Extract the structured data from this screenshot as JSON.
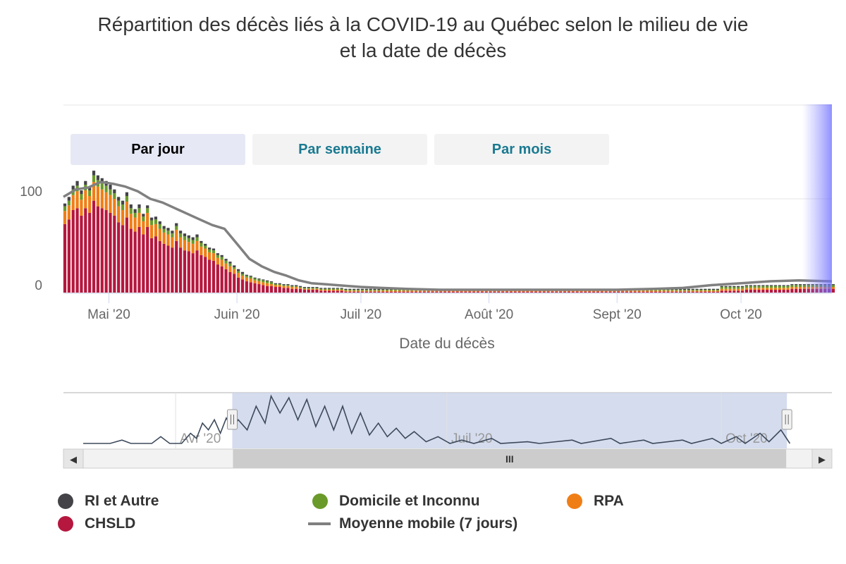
{
  "chart_data": {
    "type": "bar",
    "stacked": true,
    "title": "Répartition des décès liés à la COVID-19 au Québec selon le milieu de vie et la date de décès",
    "title_lines": [
      "Répartition des décès liés à la COVID-19 au Québec selon le milieu de vie",
      "et la date de décès"
    ],
    "xlabel": "Date du décès",
    "ylabel": "",
    "x_range": [
      "2020-04-20",
      "2020-10-23"
    ],
    "ylim": [
      0,
      200
    ],
    "y_ticks": [
      "0",
      "100"
    ],
    "x_ticks": [
      {
        "date": "2020-05-01",
        "label": "Mai '20"
      },
      {
        "date": "2020-06-01",
        "label": "Juin '20"
      },
      {
        "date": "2020-07-01",
        "label": "Juil '20"
      },
      {
        "date": "2020-08-01",
        "label": "Août '20"
      },
      {
        "date": "2020-09-01",
        "label": "Sept '20"
      },
      {
        "date": "2020-10-01",
        "label": "Oct '20"
      }
    ],
    "grid": true,
    "legend_position": "bottom",
    "start_date": "2020-04-20",
    "series": [
      {
        "name": "CHSLD",
        "color": "#b5173e",
        "values": [
          73,
          78,
          88,
          90,
          82,
          90,
          85,
          98,
          92,
          90,
          88,
          85,
          82,
          75,
          72,
          80,
          68,
          65,
          70,
          62,
          70,
          58,
          60,
          55,
          52,
          50,
          48,
          55,
          48,
          45,
          44,
          42,
          45,
          40,
          38,
          35,
          34,
          30,
          28,
          25,
          22,
          20,
          16,
          14,
          12,
          11,
          10,
          9,
          8,
          7,
          7,
          6,
          6,
          5,
          5,
          4,
          4,
          4,
          3,
          3,
          3,
          3,
          2,
          2,
          2,
          2,
          2,
          2,
          1,
          1,
          1,
          1,
          1,
          1,
          1,
          1,
          1,
          1,
          1,
          1,
          1,
          1,
          1,
          1,
          1,
          1,
          1,
          1,
          1,
          1,
          1,
          1,
          1,
          1,
          1,
          1,
          1,
          1,
          1,
          1,
          1,
          1,
          1,
          1,
          1,
          1,
          1,
          1,
          1,
          1,
          1,
          1,
          1,
          1,
          1,
          1,
          1,
          1,
          1,
          1,
          1,
          1,
          1,
          1,
          1,
          1,
          1,
          1,
          1,
          1,
          1,
          1,
          1,
          1,
          1,
          1,
          1,
          1,
          1,
          1,
          1,
          1,
          1,
          1,
          1,
          1,
          1,
          1,
          1,
          1,
          1,
          1,
          1,
          1,
          1,
          1,
          1,
          1,
          1,
          2,
          2,
          2,
          2,
          2,
          2,
          3,
          3,
          3,
          3,
          3,
          3,
          3,
          3,
          3,
          3,
          3,
          4,
          4,
          4,
          4,
          4,
          4,
          4,
          4,
          4,
          4,
          4
        ]
      },
      {
        "name": "RPA",
        "color": "#f07e16",
        "values": [
          14,
          15,
          16,
          18,
          17,
          19,
          18,
          20,
          21,
          20,
          19,
          19,
          18,
          17,
          16,
          17,
          16,
          15,
          15,
          14,
          15,
          14,
          13,
          13,
          12,
          12,
          11,
          12,
          11,
          11,
          10,
          10,
          10,
          9,
          9,
          8,
          8,
          7,
          7,
          6,
          6,
          5,
          5,
          4,
          4,
          4,
          3,
          3,
          3,
          3,
          2,
          2,
          2,
          2,
          2,
          2,
          2,
          1,
          1,
          1,
          1,
          1,
          1,
          1,
          1,
          1,
          1,
          1,
          1,
          1,
          1,
          1,
          1,
          1,
          1,
          1,
          1,
          1,
          1,
          1,
          1,
          1,
          1,
          1,
          1,
          1,
          1,
          1,
          1,
          1,
          1,
          1,
          1,
          1,
          1,
          1,
          1,
          1,
          1,
          1,
          1,
          1,
          1,
          1,
          1,
          1,
          1,
          1,
          1,
          1,
          1,
          1,
          1,
          1,
          1,
          1,
          1,
          1,
          1,
          1,
          1,
          1,
          1,
          1,
          1,
          1,
          1,
          1,
          1,
          1,
          1,
          1,
          1,
          1,
          1,
          1,
          1,
          1,
          1,
          1,
          1,
          1,
          1,
          1,
          1,
          1,
          1,
          1,
          1,
          1,
          1,
          1,
          1,
          1,
          1,
          1,
          1,
          1,
          1,
          2,
          2,
          2,
          2,
          2,
          2,
          2,
          2,
          2,
          2,
          2,
          2,
          2,
          2,
          2,
          2,
          2,
          2,
          2,
          2,
          2,
          2,
          2,
          2,
          2,
          2,
          2,
          2
        ]
      },
      {
        "name": "Domicile et Inconnu",
        "color": "#6a9a29",
        "values": [
          5,
          5,
          6,
          6,
          6,
          6,
          6,
          7,
          7,
          7,
          7,
          6,
          6,
          6,
          6,
          6,
          6,
          5,
          5,
          5,
          5,
          5,
          5,
          5,
          4,
          4,
          4,
          4,
          4,
          4,
          4,
          4,
          4,
          4,
          3,
          3,
          3,
          3,
          3,
          3,
          3,
          2,
          2,
          2,
          2,
          2,
          2,
          2,
          2,
          2,
          2,
          1,
          1,
          1,
          1,
          1,
          1,
          1,
          1,
          1,
          1,
          1,
          1,
          1,
          1,
          1,
          1,
          1,
          1,
          1,
          1,
          1,
          1,
          1,
          1,
          1,
          1,
          1,
          1,
          1,
          1,
          1,
          1,
          1,
          1,
          1,
          1,
          1,
          1,
          1,
          1,
          1,
          1,
          1,
          1,
          1,
          1,
          1,
          1,
          1,
          1,
          1,
          1,
          1,
          1,
          1,
          1,
          1,
          1,
          1,
          1,
          1,
          1,
          1,
          1,
          1,
          1,
          1,
          1,
          1,
          1,
          1,
          1,
          1,
          1,
          1,
          1,
          1,
          1,
          1,
          1,
          1,
          1,
          1,
          1,
          1,
          1,
          1,
          1,
          1,
          1,
          1,
          1,
          1,
          1,
          1,
          1,
          1,
          1,
          1,
          1,
          1,
          1,
          1,
          1,
          1,
          1,
          1,
          1,
          2,
          2,
          2,
          2,
          2,
          2,
          2,
          2,
          2,
          2,
          2,
          2,
          2,
          2,
          2,
          2,
          2,
          2,
          2,
          2,
          2,
          2,
          2,
          2,
          2,
          2,
          2,
          2
        ]
      },
      {
        "name": "RI et Autre",
        "color": "#434348",
        "values": [
          3,
          4,
          4,
          5,
          4,
          4,
          4,
          5,
          5,
          5,
          5,
          5,
          4,
          4,
          4,
          4,
          4,
          4,
          4,
          3,
          3,
          3,
          3,
          3,
          3,
          3,
          3,
          3,
          3,
          3,
          3,
          3,
          3,
          2,
          2,
          2,
          2,
          2,
          2,
          2,
          2,
          2,
          2,
          2,
          1,
          1,
          1,
          1,
          1,
          1,
          1,
          1,
          1,
          1,
          1,
          1,
          1,
          1,
          1,
          1,
          1,
          1,
          1,
          1,
          1,
          1,
          1,
          1,
          1,
          1,
          1,
          1,
          1,
          1,
          1,
          1,
          1,
          1,
          1,
          1,
          1,
          1,
          1,
          1,
          1,
          1,
          1,
          1,
          1,
          1,
          1,
          1,
          1,
          1,
          1,
          1,
          1,
          1,
          1,
          1,
          1,
          1,
          1,
          1,
          1,
          1,
          1,
          1,
          1,
          1,
          1,
          1,
          1,
          1,
          1,
          1,
          1,
          1,
          1,
          1,
          1,
          1,
          1,
          1,
          1,
          1,
          1,
          1,
          1,
          1,
          1,
          1,
          1,
          1,
          1,
          1,
          1,
          1,
          1,
          1,
          1,
          1,
          1,
          1,
          1,
          1,
          1,
          1,
          1,
          1,
          1,
          1,
          1,
          1,
          1,
          1,
          1,
          1,
          1,
          1,
          1,
          1,
          1,
          1,
          1,
          1,
          1,
          1,
          1,
          1,
          1,
          1,
          1,
          1,
          1,
          1,
          1,
          1,
          1,
          1,
          1,
          1,
          1,
          1,
          1,
          1,
          1
        ]
      },
      {
        "name": "Moyenne mobile (7 jours)",
        "color": "#808080",
        "type": "line",
        "points": [
          [
            "2020-04-20",
            102
          ],
          [
            "2020-04-23",
            110
          ],
          [
            "2020-04-26",
            112
          ],
          [
            "2020-04-29",
            118
          ],
          [
            "2020-05-02",
            116
          ],
          [
            "2020-05-05",
            113
          ],
          [
            "2020-05-08",
            108
          ],
          [
            "2020-05-11",
            100
          ],
          [
            "2020-05-14",
            96
          ],
          [
            "2020-05-17",
            90
          ],
          [
            "2020-05-20",
            84
          ],
          [
            "2020-05-23",
            78
          ],
          [
            "2020-05-26",
            72
          ],
          [
            "2020-05-29",
            68
          ],
          [
            "2020-06-01",
            52
          ],
          [
            "2020-06-04",
            36
          ],
          [
            "2020-06-07",
            28
          ],
          [
            "2020-06-10",
            22
          ],
          [
            "2020-06-13",
            18
          ],
          [
            "2020-06-16",
            13
          ],
          [
            "2020-06-19",
            10
          ],
          [
            "2020-06-22",
            9
          ],
          [
            "2020-06-25",
            8
          ],
          [
            "2020-06-28",
            7
          ],
          [
            "2020-07-01",
            6
          ],
          [
            "2020-07-06",
            5
          ],
          [
            "2020-07-12",
            4
          ],
          [
            "2020-07-20",
            3
          ],
          [
            "2020-08-01",
            3
          ],
          [
            "2020-08-15",
            3
          ],
          [
            "2020-09-01",
            3
          ],
          [
            "2020-09-10",
            4
          ],
          [
            "2020-09-17",
            5
          ],
          [
            "2020-09-24",
            8
          ],
          [
            "2020-10-01",
            10
          ],
          [
            "2020-10-08",
            12
          ],
          [
            "2020-10-15",
            13
          ],
          [
            "2020-10-23",
            12
          ]
        ]
      }
    ],
    "navigator": {
      "x_ticks": [
        {
          "date": "2020-04-01",
          "label": "Avr '20"
        },
        {
          "date": "2020-07-01",
          "label": "Juil '20"
        },
        {
          "date": "2020-10-01",
          "label": "Oct '20"
        }
      ],
      "full_range": [
        "2020-03-01",
        "2020-10-31"
      ],
      "selected_range": [
        "2020-04-20",
        "2020-10-23"
      ],
      "points": [
        [
          "2020-03-01",
          0
        ],
        [
          "2020-03-10",
          0
        ],
        [
          "2020-03-14",
          2
        ],
        [
          "2020-03-17",
          0
        ],
        [
          "2020-03-24",
          0
        ],
        [
          "2020-03-27",
          4
        ],
        [
          "2020-03-30",
          0
        ],
        [
          "2020-04-03",
          0
        ],
        [
          "2020-04-06",
          6
        ],
        [
          "2020-04-08",
          3
        ],
        [
          "2020-04-10",
          12
        ],
        [
          "2020-04-12",
          8
        ],
        [
          "2020-04-14",
          14
        ],
        [
          "2020-04-16",
          6
        ],
        [
          "2020-04-18",
          15
        ],
        [
          "2020-04-20",
          9
        ],
        [
          "2020-04-22",
          14
        ],
        [
          "2020-04-25",
          8
        ],
        [
          "2020-04-28",
          22
        ],
        [
          "2020-05-01",
          12
        ],
        [
          "2020-05-03",
          28
        ],
        [
          "2020-05-06",
          18
        ],
        [
          "2020-05-09",
          27
        ],
        [
          "2020-05-12",
          14
        ],
        [
          "2020-05-15",
          26
        ],
        [
          "2020-05-18",
          10
        ],
        [
          "2020-05-21",
          22
        ],
        [
          "2020-05-24",
          8
        ],
        [
          "2020-05-27",
          22
        ],
        [
          "2020-05-30",
          6
        ],
        [
          "2020-06-02",
          18
        ],
        [
          "2020-06-05",
          5
        ],
        [
          "2020-06-08",
          12
        ],
        [
          "2020-06-11",
          4
        ],
        [
          "2020-06-14",
          9
        ],
        [
          "2020-06-17",
          3
        ],
        [
          "2020-06-20",
          7
        ],
        [
          "2020-06-24",
          1
        ],
        [
          "2020-06-28",
          4
        ],
        [
          "2020-07-02",
          0
        ],
        [
          "2020-07-06",
          2
        ],
        [
          "2020-07-10",
          0
        ],
        [
          "2020-07-16",
          3
        ],
        [
          "2020-07-19",
          0
        ],
        [
          "2020-07-28",
          1
        ],
        [
          "2020-08-01",
          0
        ],
        [
          "2020-08-12",
          2
        ],
        [
          "2020-08-15",
          0
        ],
        [
          "2020-08-25",
          3
        ],
        [
          "2020-08-28",
          0
        ],
        [
          "2020-09-05",
          2
        ],
        [
          "2020-09-08",
          0
        ],
        [
          "2020-09-18",
          2
        ],
        [
          "2020-09-21",
          0
        ],
        [
          "2020-09-28",
          3
        ],
        [
          "2020-10-01",
          0
        ],
        [
          "2020-10-06",
          4
        ],
        [
          "2020-10-09",
          0
        ],
        [
          "2020-10-14",
          6
        ],
        [
          "2020-10-17",
          1
        ],
        [
          "2020-10-21",
          8
        ],
        [
          "2020-10-24",
          0
        ]
      ]
    }
  },
  "range_buttons": [
    {
      "label": "Par jour",
      "active": true
    },
    {
      "label": "Par semaine",
      "active": false
    },
    {
      "label": "Par mois",
      "active": false
    }
  ],
  "legend": {
    "ri": "RI et Autre",
    "domicile": "Domicile et Inconnu",
    "rpa": "RPA",
    "chsld": "CHSLD",
    "moyenne": "Moyenne mobile (7 jours)"
  },
  "colors": {
    "chsld": "#b5173e",
    "rpa": "#f07e16",
    "domicile": "#6a9a29",
    "ri": "#434348",
    "moyenne": "#808080",
    "navigator_mask": "#ccd6eb",
    "button_active": "#e6e9f5",
    "button_text": "#1a7a91"
  },
  "scrollbar": {
    "grip": "III",
    "left_arrow": "◀",
    "right_arrow": "▶"
  }
}
